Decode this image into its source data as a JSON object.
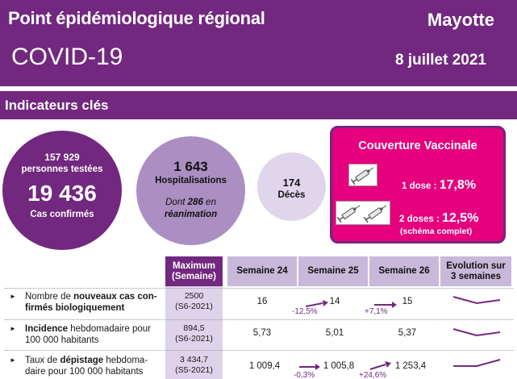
{
  "header": {
    "title": "Point épidémiologique régional",
    "subtitle": "COVID-19",
    "region": "Mayotte",
    "date": "8 juillet 2021"
  },
  "section_title": "Indicateurs clés",
  "key_figures": {
    "tested_count": "157 929",
    "tested_label": "personnes testées",
    "confirmed_count": "19 436",
    "confirmed_label": "Cas confirmés",
    "hosp_count": "1 643",
    "hosp_label": "Hospitalisations",
    "rea_prefix": "Dont",
    "rea_count": "286",
    "rea_suffix": "en",
    "rea_label": "réanimation",
    "deaths_count": "174",
    "deaths_label": "Décès"
  },
  "vaccination": {
    "title": "Couverture Vaccinale",
    "dose1_label": "1 dose :",
    "dose1_value": "17,8%",
    "dose2_label": "2 doses :",
    "dose2_value": "12,5%",
    "dose2_note": "(schéma complet)",
    "icon_one": "syringe-icon",
    "icon_two": "two-syringes-icon"
  },
  "table": {
    "headers": {
      "max_line1": "Maximum",
      "max_line2": "(Semaine)",
      "w24": "Semaine 24",
      "w25": "Semaine 25",
      "w26": "Semaine 26",
      "evo_line1": "Evolution sur",
      "evo_line2": "3 semaines"
    },
    "rows": [
      {
        "label_pre": "Nombre de ",
        "label_bold": "nouveaux cas con-firmés biologiquement",
        "label_post": "",
        "max_value": "2500",
        "max_week": "(S6-2021)",
        "w24": "16",
        "w25": "14",
        "w26": "15",
        "chg25": "-12,5%",
        "chg26": "+7,1%",
        "trend": [
          16,
          14,
          15
        ]
      },
      {
        "label_pre": "",
        "label_bold": "Incidence",
        "label_post": " hebdomadaire pour 100 000 habitants",
        "max_value": "894,5",
        "max_week": "(S6-2021)",
        "w24": "5,73",
        "w25": "5,01",
        "w26": "5,37",
        "chg25": "",
        "chg26": "",
        "trend": [
          5.73,
          5.01,
          5.37
        ]
      },
      {
        "label_pre": "Taux de ",
        "label_bold": "dépistage",
        "label_post": " hebdoma-daire pour 100 000 habitants",
        "max_value": "3 434,7",
        "max_week": "(S5-2021)",
        "w24": "1 009,4",
        "w25": "1 005,8",
        "w26": "1 253,4",
        "chg25": "-0,3%",
        "chg26": "+24,6%",
        "trend": [
          1009.4,
          1005.8,
          1253.4
        ]
      }
    ]
  },
  "colors": {
    "purple": "#72287f",
    "magenta": "#e6007e",
    "lavender": "#ab8fc2"
  }
}
